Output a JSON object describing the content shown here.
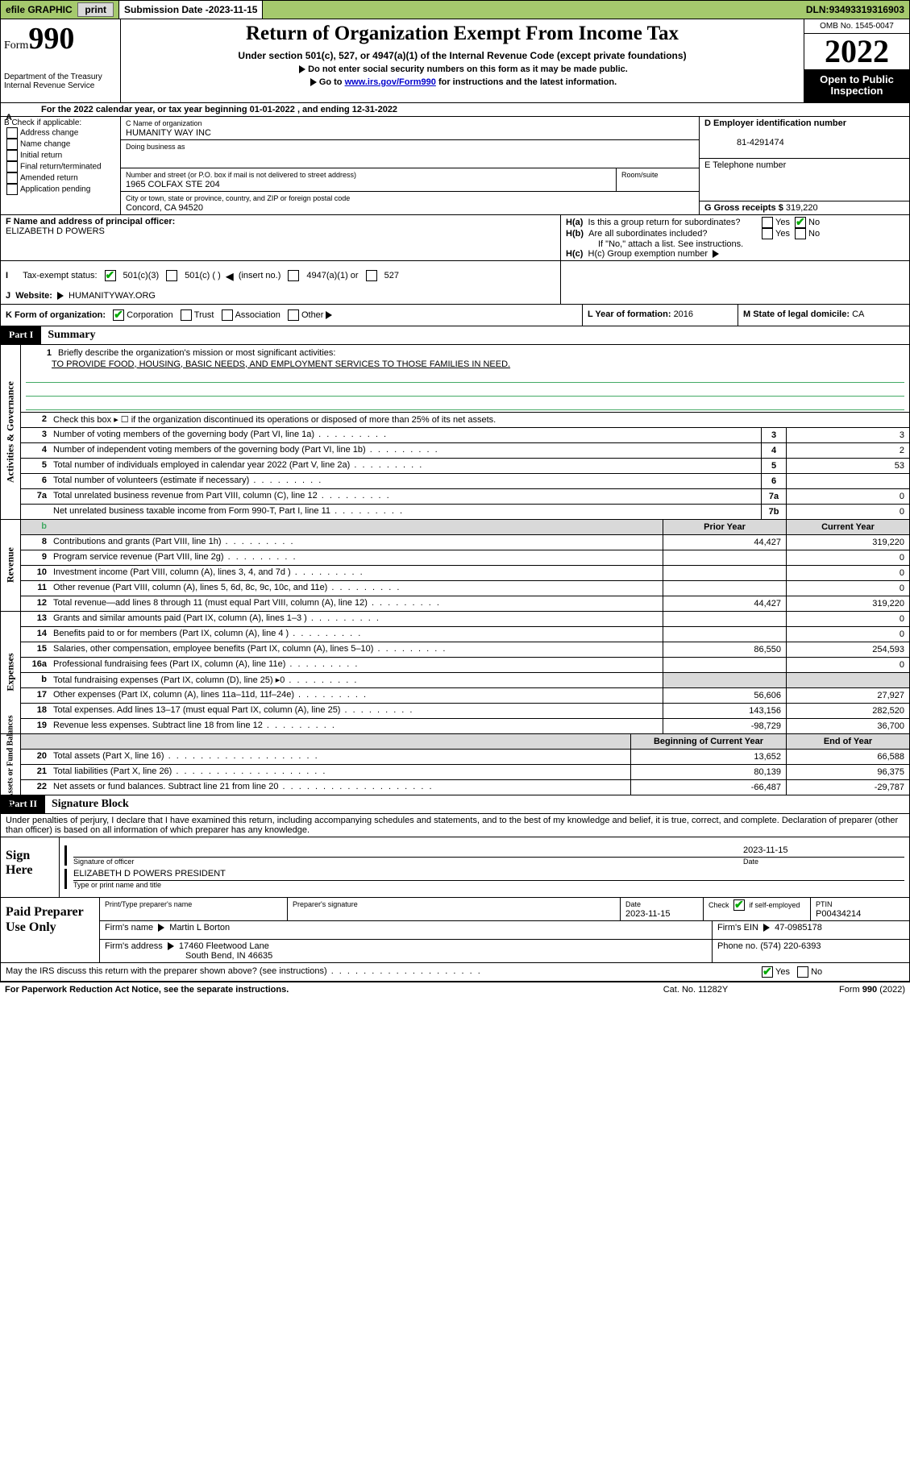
{
  "topbar": {
    "efile": "efile GRAPHIC",
    "print": "print",
    "sub_label": "Submission Date - ",
    "sub_date": "2023-11-15",
    "dln_label": "DLN: ",
    "dln": "93493319316903"
  },
  "header": {
    "form_prefix": "Form",
    "form_num": "990",
    "dept": "Department of the Treasury",
    "irs": "Internal Revenue Service",
    "title": "Return of Organization Exempt From Income Tax",
    "sub1": "Under section 501(c), 527, or 4947(a)(1) of the Internal Revenue Code (except private foundations)",
    "sub2a": "Do not enter social security numbers on this form as it may be made public.",
    "sub2b_pre": "Go to ",
    "sub2b_link": "www.irs.gov/Form990",
    "sub2b_post": " for instructions and the latest information.",
    "omb": "OMB No. 1545-0047",
    "year": "2022",
    "open": "Open to Public Inspection"
  },
  "row_a": {
    "text_pre": "For the 2022 calendar year, or tax year beginning ",
    "begin": "01-01-2022",
    "mid": " , and ending ",
    "end": "12-31-2022",
    "letter": "A"
  },
  "b": {
    "hdr": "B Check if applicable:",
    "opts": [
      "Address change",
      "Name change",
      "Initial return",
      "Final return/terminated",
      "Amended return",
      "Application pending"
    ]
  },
  "c": {
    "name_lbl": "C Name of organization",
    "name": "HUMANITY WAY INC",
    "dba_lbl": "Doing business as",
    "street_lbl": "Number and street (or P.O. box if mail is not delivered to street address)",
    "street": "1965 COLFAX STE 204",
    "room_lbl": "Room/suite",
    "city_lbl": "City or town, state or province, country, and ZIP or foreign postal code",
    "city": "Concord, CA  94520"
  },
  "d": {
    "lbl": "D Employer identification number",
    "val": "81-4291474"
  },
  "e": {
    "lbl": "E Telephone number"
  },
  "g": {
    "lbl": "G Gross receipts $ ",
    "val": "319,220"
  },
  "f": {
    "lbl": "F  Name and address of principal officer:",
    "name": "ELIZABETH D POWERS"
  },
  "h": {
    "a_lbl": "H(a)  Is this a group return for subordinates?",
    "b_lbl": "H(b)  Are all subordinates included?",
    "b_note": "If \"No,\" attach a list. See instructions.",
    "c_lbl": "H(c)  Group exemption number ",
    "yes": "Yes",
    "no": "No"
  },
  "i": {
    "lbl": "Tax-exempt status:",
    "opts": [
      "501(c)(3)",
      "501(c) (  ) ",
      "(insert no.)",
      "4947(a)(1) or",
      "527"
    ],
    "letter": "I"
  },
  "j": {
    "letter": "J",
    "lbl": "Website: ",
    "val": "HUMANITYWAY.ORG"
  },
  "k": {
    "lbl": "K Form of organization:",
    "opts": [
      "Corporation",
      "Trust",
      "Association",
      "Other"
    ],
    "l_lbl": "L Year of formation: ",
    "l_val": "2016",
    "m_lbl": "M State of legal domicile: ",
    "m_val": "CA"
  },
  "part1": {
    "tab": "Part I",
    "title": "Summary",
    "line1_lbl": "Briefly describe the organization's mission or most significant activities:",
    "mission": "TO PROVIDE FOOD, HOUSING, BASIC NEEDS, AND EMPLOYMENT SERVICES TO THOSE FAMILIES IN NEED.",
    "line2": "Check this box ▸ ☐  if the organization discontinued its operations or disposed of more than 25% of its net assets.",
    "vtabs": {
      "gov": "Activities & Governance",
      "rev": "Revenue",
      "exp": "Expenses",
      "net": "Net Assets or Fund Balances"
    },
    "prior_hdr": "Prior Year",
    "curr_hdr": "Current Year",
    "boy_hdr": "Beginning of Current Year",
    "eoy_hdr": "End of Year",
    "rows_gov": [
      {
        "n": "3",
        "t": "Number of voting members of the governing body (Part VI, line 1a)",
        "box": "3",
        "v": "3"
      },
      {
        "n": "4",
        "t": "Number of independent voting members of the governing body (Part VI, line 1b)",
        "box": "4",
        "v": "2"
      },
      {
        "n": "5",
        "t": "Total number of individuals employed in calendar year 2022 (Part V, line 2a)",
        "box": "5",
        "v": "53"
      },
      {
        "n": "6",
        "t": "Total number of volunteers (estimate if necessary)",
        "box": "6",
        "v": ""
      },
      {
        "n": "7a",
        "t": "Total unrelated business revenue from Part VIII, column (C), line 12",
        "box": "7a",
        "v": "0"
      },
      {
        "n": "",
        "t": "Net unrelated business taxable income from Form 990-T, Part I, line 11",
        "box": "7b",
        "v": "0"
      }
    ],
    "rows_rev": [
      {
        "n": "8",
        "t": "Contributions and grants (Part VIII, line 1h)",
        "p": "44,427",
        "c": "319,220"
      },
      {
        "n": "9",
        "t": "Program service revenue (Part VIII, line 2g)",
        "p": "",
        "c": "0"
      },
      {
        "n": "10",
        "t": "Investment income (Part VIII, column (A), lines 3, 4, and 7d )",
        "p": "",
        "c": "0"
      },
      {
        "n": "11",
        "t": "Other revenue (Part VIII, column (A), lines 5, 6d, 8c, 9c, 10c, and 11e)",
        "p": "",
        "c": "0"
      },
      {
        "n": "12",
        "t": "Total revenue—add lines 8 through 11 (must equal Part VIII, column (A), line 12)",
        "p": "44,427",
        "c": "319,220"
      }
    ],
    "rows_exp": [
      {
        "n": "13",
        "t": "Grants and similar amounts paid (Part IX, column (A), lines 1–3 )",
        "p": "",
        "c": "0"
      },
      {
        "n": "14",
        "t": "Benefits paid to or for members (Part IX, column (A), line 4 )",
        "p": "",
        "c": "0"
      },
      {
        "n": "15",
        "t": "Salaries, other compensation, employee benefits (Part IX, column (A), lines 5–10)",
        "p": "86,550",
        "c": "254,593"
      },
      {
        "n": "16a",
        "t": "Professional fundraising fees (Part IX, column (A), line 11e)",
        "p": "",
        "c": "0"
      },
      {
        "n": "b",
        "t": "Total fundraising expenses (Part IX, column (D), line 25) ▸0",
        "p": "GRAY",
        "c": "GRAY"
      },
      {
        "n": "17",
        "t": "Other expenses (Part IX, column (A), lines 11a–11d, 11f–24e)",
        "p": "56,606",
        "c": "27,927"
      },
      {
        "n": "18",
        "t": "Total expenses. Add lines 13–17 (must equal Part IX, column (A), line 25)",
        "p": "143,156",
        "c": "282,520"
      },
      {
        "n": "19",
        "t": "Revenue less expenses. Subtract line 18 from line 12",
        "p": "-98,729",
        "c": "36,700"
      }
    ],
    "rows_net": [
      {
        "n": "20",
        "t": "Total assets (Part X, line 16)",
        "p": "13,652",
        "c": "66,588"
      },
      {
        "n": "21",
        "t": "Total liabilities (Part X, line 26)",
        "p": "80,139",
        "c": "96,375"
      },
      {
        "n": "22",
        "t": "Net assets or fund balances. Subtract line 21 from line 20",
        "p": "-66,487",
        "c": "-29,787"
      }
    ]
  },
  "part2": {
    "tab": "Part II",
    "title": "Signature Block",
    "penalty": "Under penalties of perjury, I declare that I have examined this return, including accompanying schedules and statements, and to the best of my knowledge and belief, it is true, correct, and complete. Declaration of preparer (other than officer) is based on all information of which preparer has any knowledge.",
    "sign_here": "Sign Here",
    "sig_officer": "Signature of officer",
    "date_lbl": "Date",
    "sig_date": "2023-11-15",
    "officer_name": "ELIZABETH D POWERS  PRESIDENT",
    "type_name": "Type or print name and title",
    "paid": "Paid Preparer Use Only",
    "prep_name_lbl": "Print/Type preparer's name",
    "prep_sig_lbl": "Preparer's signature",
    "prep_date_lbl": "Date",
    "prep_date": "2023-11-15",
    "check_lbl": "Check ",
    "self_emp": "if self-employed",
    "ptin_lbl": "PTIN",
    "ptin": "P00434214",
    "firm_name_lbl": "Firm's name   ",
    "firm_name": "Martin L Borton",
    "firm_ein_lbl": "Firm's EIN ",
    "firm_ein": "47-0985178",
    "firm_addr_lbl": "Firm's address ",
    "firm_addr1": "17460 Fleetwood Lane",
    "firm_addr2": "South Bend, IN  46635",
    "phone_lbl": "Phone no. ",
    "phone": "(574) 220-6393",
    "may_irs": "May the IRS discuss this return with the preparer shown above? (see instructions)",
    "yes": "Yes",
    "no": "No"
  },
  "footer": {
    "left": "For Paperwork Reduction Act Notice, see the separate instructions.",
    "mid": "Cat. No. 11282Y",
    "right_pre": "Form ",
    "right_b": "990",
    "right_post": " (2022)"
  },
  "colors": {
    "topbar_bg": "#a5c96d",
    "link": "#0000cc",
    "check": "#0a9f0a",
    "gray": "#d9d9d9"
  }
}
